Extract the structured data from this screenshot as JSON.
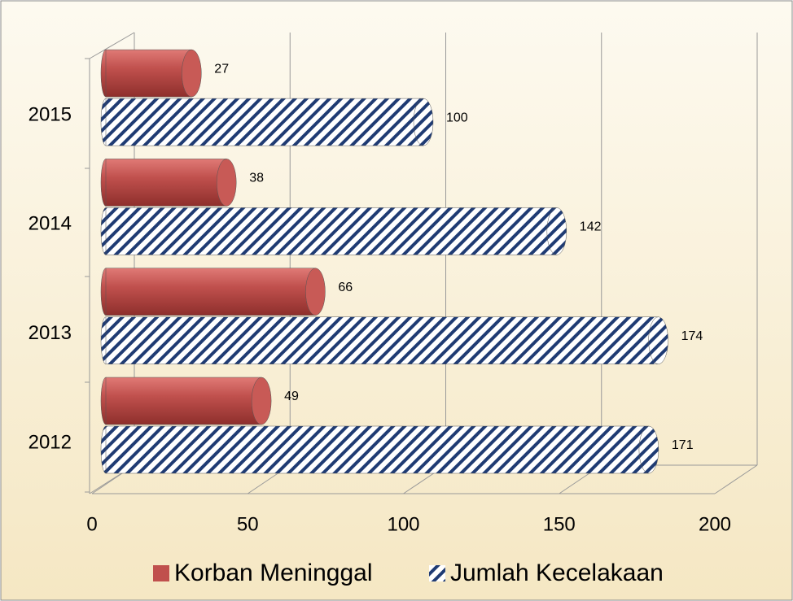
{
  "chart_data": {
    "type": "bar3d-horizontal",
    "categories": [
      "2012",
      "2013",
      "2014",
      "2015"
    ],
    "series": [
      {
        "name": "Korban Meninggal",
        "color": "#c0504d",
        "values": [
          49,
          66,
          38,
          27
        ]
      },
      {
        "name": "Jumlah Kecelakaan",
        "color": "#1f3b73",
        "hatch": true,
        "values": [
          171,
          174,
          142,
          100
        ]
      }
    ],
    "xlim": [
      0,
      200
    ],
    "xticks": [
      0,
      50,
      100,
      150,
      200
    ],
    "grid": true,
    "legend": "bottom"
  }
}
